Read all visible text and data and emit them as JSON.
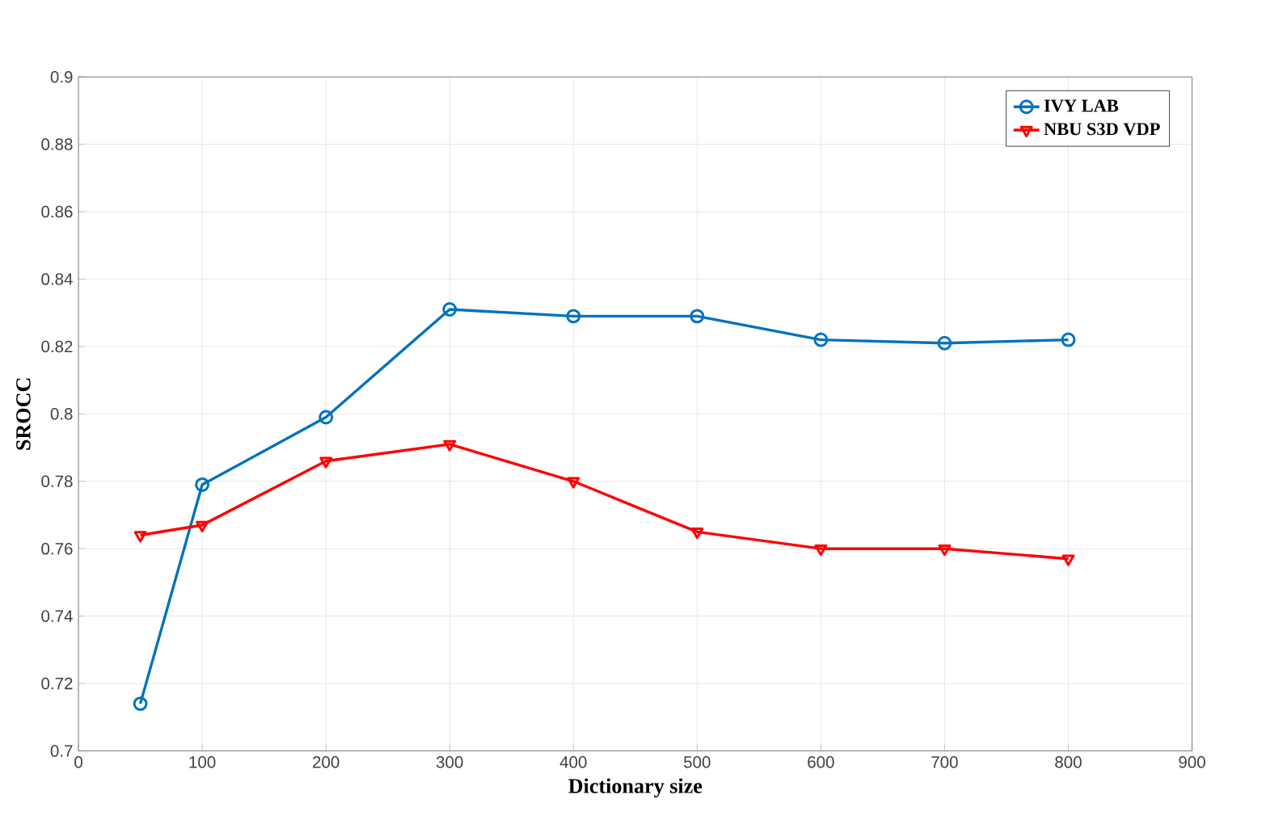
{
  "chart_data": {
    "type": "line",
    "xlabel": "Dictionary size",
    "ylabel": "SROCC",
    "x": [
      50,
      100,
      200,
      300,
      400,
      500,
      600,
      700,
      800
    ],
    "series": [
      {
        "name": "IVY LAB",
        "color": "#0072bd",
        "marker": "circle",
        "values": [
          0.714,
          0.779,
          0.799,
          0.831,
          0.829,
          0.829,
          0.822,
          0.821,
          0.822
        ]
      },
      {
        "name": "NBU S3D VDP",
        "color": "#ff0000",
        "marker": "triangle",
        "values": [
          0.764,
          0.767,
          0.786,
          0.791,
          0.78,
          0.765,
          0.76,
          0.76,
          0.757
        ]
      }
    ],
    "xlim": [
      0,
      900
    ],
    "ylim": [
      0.7,
      0.9
    ],
    "xticks": [
      0,
      100,
      200,
      300,
      400,
      500,
      600,
      700,
      800,
      900
    ],
    "yticks": [
      0.7,
      0.72,
      0.74,
      0.76,
      0.78,
      0.8,
      0.82,
      0.84,
      0.86,
      0.88,
      0.9
    ],
    "grid": true,
    "legend": "top right",
    "line_style": "solid"
  }
}
